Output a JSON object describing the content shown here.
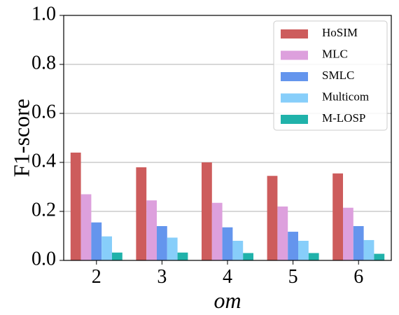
{
  "chart_data": {
    "type": "bar",
    "xlabel": "om",
    "ylabel": "F1-score",
    "categories": [
      "2",
      "3",
      "4",
      "5",
      "6"
    ],
    "ylim": [
      0,
      1.0
    ],
    "yticks": [
      "0.0",
      "0.2",
      "0.4",
      "0.6",
      "0.8",
      "1.0"
    ],
    "grid": true,
    "legend_position": "top-right",
    "series": [
      {
        "name": "HoSIM",
        "color": "#cd5c5c",
        "values": [
          0.44,
          0.38,
          0.4,
          0.345,
          0.355
        ]
      },
      {
        "name": "MLC",
        "color": "#dda0dd",
        "values": [
          0.27,
          0.245,
          0.235,
          0.22,
          0.215
        ]
      },
      {
        "name": "SMLC",
        "color": "#6495ed",
        "values": [
          0.155,
          0.14,
          0.135,
          0.117,
          0.14
        ]
      },
      {
        "name": "Multicom",
        "color": "#87cefa",
        "values": [
          0.098,
          0.093,
          0.08,
          0.08,
          0.083
        ]
      },
      {
        "name": "M-LOSP",
        "color": "#20b2aa",
        "values": [
          0.032,
          0.032,
          0.03,
          0.03,
          0.027
        ]
      }
    ]
  }
}
